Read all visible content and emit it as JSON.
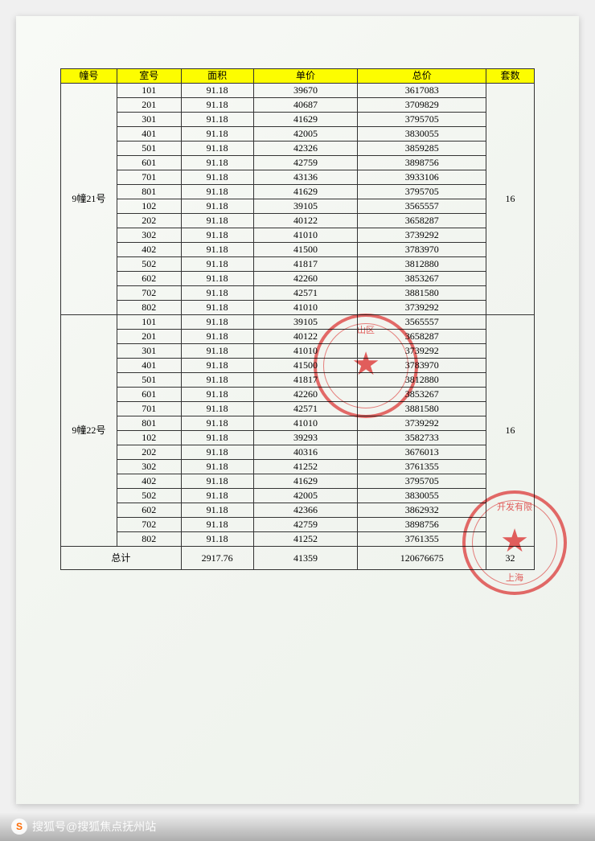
{
  "headers": {
    "building": "幢号",
    "room": "室号",
    "area": "面积",
    "unit_price": "单价",
    "total_price": "总价",
    "count": "套数"
  },
  "groups": [
    {
      "building": "9幢21号",
      "count": "16",
      "rows": [
        {
          "room": "101",
          "area": "91.18",
          "unit": "39670",
          "total": "3617083"
        },
        {
          "room": "201",
          "area": "91.18",
          "unit": "40687",
          "total": "3709829"
        },
        {
          "room": "301",
          "area": "91.18",
          "unit": "41629",
          "total": "3795705"
        },
        {
          "room": "401",
          "area": "91.18",
          "unit": "42005",
          "total": "3830055"
        },
        {
          "room": "501",
          "area": "91.18",
          "unit": "42326",
          "total": "3859285"
        },
        {
          "room": "601",
          "area": "91.18",
          "unit": "42759",
          "total": "3898756"
        },
        {
          "room": "701",
          "area": "91.18",
          "unit": "43136",
          "total": "3933106"
        },
        {
          "room": "801",
          "area": "91.18",
          "unit": "41629",
          "total": "3795705"
        },
        {
          "room": "102",
          "area": "91.18",
          "unit": "39105",
          "total": "3565557"
        },
        {
          "room": "202",
          "area": "91.18",
          "unit": "40122",
          "total": "3658287"
        },
        {
          "room": "302",
          "area": "91.18",
          "unit": "41010",
          "total": "3739292"
        },
        {
          "room": "402",
          "area": "91.18",
          "unit": "41500",
          "total": "3783970"
        },
        {
          "room": "502",
          "area": "91.18",
          "unit": "41817",
          "total": "3812880"
        },
        {
          "room": "602",
          "area": "91.18",
          "unit": "42260",
          "total": "3853267"
        },
        {
          "room": "702",
          "area": "91.18",
          "unit": "42571",
          "total": "3881580"
        },
        {
          "room": "802",
          "area": "91.18",
          "unit": "41010",
          "total": "3739292"
        }
      ]
    },
    {
      "building": "9幢22号",
      "count": "16",
      "rows": [
        {
          "room": "101",
          "area": "91.18",
          "unit": "39105",
          "total": "3565557"
        },
        {
          "room": "201",
          "area": "91.18",
          "unit": "40122",
          "total": "3658287"
        },
        {
          "room": "301",
          "area": "91.18",
          "unit": "41010",
          "total": "3739292"
        },
        {
          "room": "401",
          "area": "91.18",
          "unit": "41500",
          "total": "3783970"
        },
        {
          "room": "501",
          "area": "91.18",
          "unit": "41817",
          "total": "3812880"
        },
        {
          "room": "601",
          "area": "91.18",
          "unit": "42260",
          "total": "3853267"
        },
        {
          "room": "701",
          "area": "91.18",
          "unit": "42571",
          "total": "3881580"
        },
        {
          "room": "801",
          "area": "91.18",
          "unit": "41010",
          "total": "3739292"
        },
        {
          "room": "102",
          "area": "91.18",
          "unit": "39293",
          "total": "3582733"
        },
        {
          "room": "202",
          "area": "91.18",
          "unit": "40316",
          "total": "3676013"
        },
        {
          "room": "302",
          "area": "91.18",
          "unit": "41252",
          "total": "3761355"
        },
        {
          "room": "402",
          "area": "91.18",
          "unit": "41629",
          "total": "3795705"
        },
        {
          "room": "502",
          "area": "91.18",
          "unit": "42005",
          "total": "3830055"
        },
        {
          "room": "602",
          "area": "91.18",
          "unit": "42366",
          "total": "3862932"
        },
        {
          "room": "702",
          "area": "91.18",
          "unit": "42759",
          "total": "3898756"
        },
        {
          "room": "802",
          "area": "91.18",
          "unit": "41252",
          "total": "3761355"
        }
      ]
    }
  ],
  "totals": {
    "label": "总计",
    "area": "2917.76",
    "unit": "41359",
    "total": "120676675",
    "count": "32"
  },
  "colors": {
    "header_bg": "#fdfd00",
    "border": "#333333",
    "paper": "#f4f7f2",
    "stamp": "#e71e1e"
  },
  "stamps": {
    "stamp1_text_top": "山区",
    "stamp1_text_bottom": "",
    "stamp2_text_top": "开发有限",
    "stamp2_text_bottom": "上海"
  },
  "watermark": {
    "logo": "S",
    "text": "搜狐号@搜狐焦点抚州站"
  }
}
